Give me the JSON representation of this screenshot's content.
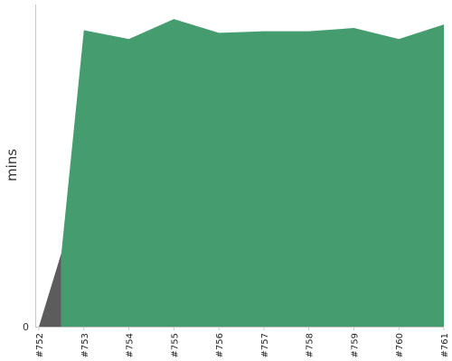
{
  "chart_data": {
    "type": "area",
    "title": "",
    "xlabel": "",
    "ylabel": "mins",
    "y_tick_labels": [
      "0"
    ],
    "x": [
      "#752",
      "#753",
      "#754",
      "#755",
      "#756",
      "#757",
      "#758",
      "#759",
      "#760",
      "#761"
    ],
    "ylim": [
      0,
      1
    ],
    "grid": false,
    "legend": "none",
    "series": [
      {
        "color": "#5c5c5c",
        "values": [
          0.0,
          0.457,
          null,
          null,
          null,
          null,
          null,
          null,
          null,
          null
        ]
      },
      {
        "color": "#459c6e",
        "values": [
          null,
          0.92,
          0.893,
          0.955,
          0.912,
          0.917,
          0.917,
          0.927,
          0.893,
          0.938
        ]
      }
    ]
  }
}
